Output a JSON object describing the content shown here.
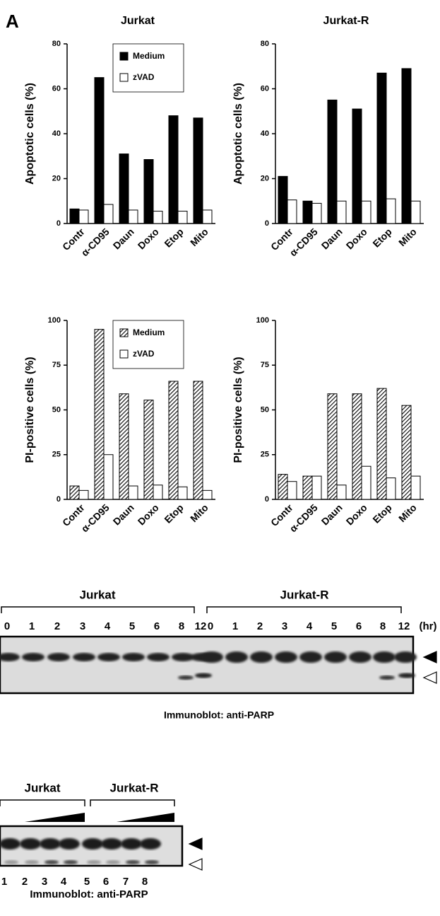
{
  "panel_label": "A",
  "chart_data": [
    {
      "type": "bar",
      "title": "Jurkat",
      "ylabel": "Apoptotic cells (%)",
      "categories": [
        "Contr",
        "α-CD95",
        "Daun",
        "Doxo",
        "Etop",
        "Mito"
      ],
      "series": [
        {
          "name": "Medium",
          "color": "#000000",
          "values": [
            6.5,
            65,
            31,
            28.5,
            48,
            47
          ]
        },
        {
          "name": "zVAD",
          "color": "#ffffff",
          "values": [
            6,
            8.5,
            6,
            5.5,
            5.5,
            6
          ]
        }
      ],
      "ylim": [
        0,
        80
      ],
      "yticks": [
        0,
        20,
        40,
        60,
        80
      ],
      "legend": "upper center"
    },
    {
      "type": "bar",
      "title": "Jurkat-R",
      "ylabel": "Apoptotic cells (%)",
      "categories": [
        "Contr",
        "α-CD95",
        "Daun",
        "Doxo",
        "Etop",
        "Mito"
      ],
      "series": [
        {
          "color": "#000000",
          "values": [
            21,
            10,
            55,
            51,
            67,
            69
          ]
        },
        {
          "color": "#ffffff",
          "values": [
            10.5,
            9,
            10,
            10,
            11,
            10
          ]
        }
      ],
      "ylim": [
        0,
        80
      ],
      "yticks": [
        0,
        20,
        40,
        60,
        80
      ]
    },
    {
      "type": "bar",
      "ylabel": "PI-positive cells (%)",
      "categories": [
        "Contr",
        "α-CD95",
        "Daun",
        "Doxo",
        "Etop",
        "Mito"
      ],
      "series": [
        {
          "name": "Medium",
          "color": "#000000",
          "hatch": true,
          "values": [
            7.5,
            95,
            59,
            55.5,
            66,
            66
          ]
        },
        {
          "name": "zVAD",
          "color": "#ffffff",
          "values": [
            5,
            25,
            7.5,
            8,
            7,
            5
          ]
        }
      ],
      "ylim": [
        0,
        100
      ],
      "yticks": [
        0,
        25,
        50,
        75,
        100
      ],
      "legend": "upper center"
    },
    {
      "type": "bar",
      "ylabel": "PI-positive cells (%)",
      "categories": [
        "Contr",
        "α-CD95",
        "Daun",
        "Doxo",
        "Etop",
        "Mito"
      ],
      "series": [
        {
          "color": "#000000",
          "hatch": true,
          "values": [
            14,
            13,
            59,
            59,
            62,
            52.5
          ]
        },
        {
          "color": "#ffffff",
          "values": [
            10,
            13,
            8,
            18.5,
            12,
            13
          ]
        }
      ],
      "ylim": [
        0,
        100
      ],
      "yticks": [
        0,
        25,
        50,
        75,
        100
      ]
    }
  ],
  "blots": [
    {
      "groups": [
        "Jurkat",
        "Jurkat-R"
      ],
      "lanes": [
        "0",
        "1",
        "2",
        "3",
        "4",
        "5",
        "6",
        "8",
        "12",
        "0",
        "1",
        "2",
        "3",
        "4",
        "5",
        "6",
        "8",
        "12"
      ],
      "unit": "(hr)",
      "caption": "Immunoblot: anti-PARP"
    },
    {
      "groups": [
        "Jurkat",
        "Jurkat-R"
      ],
      "lanes": [
        "1",
        "2",
        "3",
        "4",
        "5",
        "6",
        "7",
        "8"
      ],
      "caption": "Immunoblot: anti-PARP"
    }
  ]
}
